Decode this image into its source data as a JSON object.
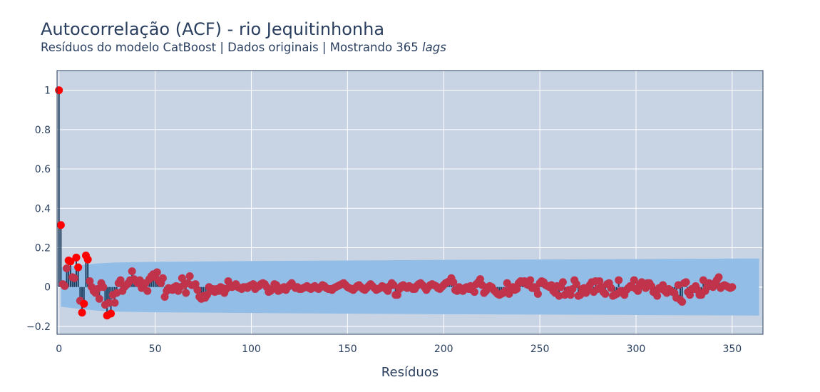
{
  "chart_data": {
    "type": "scatter",
    "title": "Autocorrelação (ACF) - rio Jequitinhonha",
    "subtitle_prefix": "Resíduos do modelo CatBoost | Dados originais | Mostrando 365 ",
    "subtitle_italic": "lags",
    "xlabel": "Resíduos",
    "ylabel": "",
    "xlim": [
      -1,
      366
    ],
    "ylim": [
      -0.24,
      1.1
    ],
    "x_ticks": [
      0,
      50,
      100,
      150,
      200,
      250,
      300,
      350
    ],
    "x_tick_labels": [
      "0",
      "50",
      "100",
      "150",
      "200",
      "250",
      "300",
      "350"
    ],
    "y_ticks": [
      -0.2,
      0,
      0.2,
      0.4,
      0.6,
      0.8,
      1
    ],
    "y_tick_labels": [
      "−0.2",
      "0",
      "0.2",
      "0.4",
      "0.6",
      "0.8",
      "1"
    ],
    "grid": true,
    "confidence_band": {
      "lags": [
        1,
        10,
        20,
        30,
        50,
        100,
        150,
        200,
        250,
        300,
        364
      ],
      "upper": [
        0.1,
        0.11,
        0.12,
        0.125,
        0.128,
        0.132,
        0.135,
        0.138,
        0.14,
        0.142,
        0.145
      ],
      "lower": [
        -0.1,
        -0.11,
        -0.12,
        -0.125,
        -0.128,
        -0.132,
        -0.135,
        -0.138,
        -0.14,
        -0.142,
        -0.145
      ]
    },
    "highlight_lags": [
      0,
      1,
      5,
      6,
      9,
      10,
      12,
      13,
      14,
      15,
      25,
      27
    ],
    "acf_values": [
      1.0,
      0.315,
      0.015,
      0.005,
      0.095,
      0.135,
      0.13,
      0.05,
      0.045,
      0.15,
      0.1,
      -0.07,
      -0.13,
      -0.085,
      0.16,
      0.14,
      0.03,
      0.0,
      -0.02,
      -0.03,
      -0.01,
      -0.06,
      0.02,
      0.0,
      -0.09,
      -0.145,
      -0.08,
      -0.135,
      -0.04,
      -0.08,
      -0.03,
      0.02,
      0.035,
      -0.02,
      0.0,
      0.01,
      0.02,
      0.035,
      0.08,
      0.04,
      0.03,
      0.02,
      0.035,
      -0.005,
      0.01,
      0.02,
      -0.02,
      0.04,
      0.055,
      0.065,
      0.05,
      0.075,
      0.03,
      0.02,
      0.045,
      -0.05,
      -0.02,
      -0.005,
      -0.01,
      -0.015,
      0.0,
      0.005,
      -0.02,
      0.0,
      0.045,
      0.01,
      -0.03,
      0.02,
      0.055,
      0.01,
      0.01,
      0.015,
      -0.015,
      -0.05,
      -0.06,
      -0.045,
      -0.055,
      -0.04,
      0.0,
      -0.02,
      -0.01,
      -0.025,
      -0.01,
      -0.02,
      0.0,
      -0.005,
      -0.03,
      -0.01,
      0.03,
      0.01,
      0.0,
      0.005,
      0.015,
      0.0,
      -0.005,
      -0.01,
      0.0,
      0.0,
      -0.005,
      0.005,
      0.01,
      0.015,
      -0.01,
      0.0,
      0.005,
      0.015,
      0.02,
      0.015,
      0.0,
      -0.025,
      -0.02,
      -0.01,
      0.015,
      0.01,
      -0.02,
      -0.015,
      -0.005,
      0.0,
      -0.015,
      0.0,
      0.01,
      0.02,
      0.005,
      -0.005,
      0.0,
      -0.01,
      -0.01,
      -0.005,
      0.0,
      0.005,
      -0.005,
      -0.01,
      0.0,
      0.005,
      -0.005,
      -0.01,
      0.0,
      0.01,
      0.005,
      -0.005,
      -0.01,
      -0.01,
      -0.015,
      -0.005,
      0.0,
      0.005,
      0.01,
      0.015,
      0.02,
      0.01,
      0.0,
      -0.005,
      -0.01,
      -0.015,
      -0.005,
      0.005,
      0.01,
      0.0,
      -0.01,
      -0.015,
      -0.005,
      0.005,
      0.015,
      0.005,
      -0.005,
      -0.015,
      -0.01,
      -0.005,
      0.005,
      0.0,
      -0.01,
      -0.02,
      0.005,
      0.02,
      0.01,
      -0.04,
      -0.04,
      -0.01,
      0.005,
      0.01,
      0.0,
      -0.005,
      0.005,
      0.0,
      -0.01,
      -0.01,
      0.005,
      0.015,
      0.02,
      0.01,
      0.0,
      -0.015,
      0.0,
      0.01,
      0.015,
      0.01,
      0.005,
      -0.005,
      -0.01,
      0.0,
      0.01,
      0.02,
      0.025,
      0.03,
      0.045,
      0.025,
      -0.015,
      -0.02,
      0.0,
      -0.01,
      -0.02,
      -0.005,
      0.0,
      -0.01,
      0.005,
      -0.015,
      -0.025,
      0.015,
      0.025,
      0.04,
      0.01,
      -0.03,
      -0.02,
      0.0,
      0.005,
      0.0,
      -0.015,
      -0.025,
      -0.035,
      -0.04,
      -0.035,
      -0.03,
      -0.02,
      0.02,
      -0.035,
      -0.005,
      0.0,
      -0.015,
      -0.01,
      0.02,
      0.03,
      0.025,
      0.03,
      0.015,
      0.01,
      0.035,
      -0.005,
      0.0,
      -0.01,
      -0.035,
      0.02,
      0.03,
      0.025,
      0.01,
      0.005,
      0.0,
      0.01,
      -0.02,
      -0.03,
      0.005,
      -0.045,
      0.0,
      0.025,
      -0.04,
      -0.03,
      -0.015,
      -0.04,
      -0.01,
      0.035,
      0.015,
      -0.045,
      -0.04,
      -0.01,
      -0.005,
      -0.03,
      -0.01,
      0.01,
      0.025,
      -0.025,
      0.03,
      -0.01,
      0.03,
      0.0,
      -0.025,
      -0.035,
      0.015,
      0.02,
      -0.005,
      -0.045,
      -0.04,
      -0.035,
      0.035,
      -0.02,
      -0.03,
      -0.04,
      -0.015,
      -0.005,
      0.005,
      0.0,
      0.035,
      -0.01,
      -0.02,
      0.01,
      0.025,
      0.005,
      -0.005,
      0.02,
      0.02,
      0.005,
      -0.025,
      -0.03,
      -0.045,
      -0.005,
      -0.01,
      0.01,
      -0.02,
      -0.03,
      -0.01,
      -0.02,
      -0.025,
      -0.03,
      -0.055,
      0.01,
      -0.065,
      -0.075,
      0.02,
      0.025,
      -0.025,
      -0.04,
      -0.01,
      -0.01,
      0.005,
      -0.015,
      -0.04,
      -0.04,
      0.035,
      -0.02,
      0.0,
      0.02,
      0.005,
      0.0,
      0.02,
      0.035,
      0.05,
      -0.005,
      0.005,
      0.01,
      0.005,
      0.0,
      -0.005,
      0.0
    ]
  },
  "colors": {
    "plot_bg": "#c8d4e3",
    "band": "#91bde6",
    "stem": "#1f3d5c",
    "marker": "#c0334a",
    "highlight": "#ff0000",
    "grid": "#ffffff",
    "text": "#2a3f5f"
  }
}
